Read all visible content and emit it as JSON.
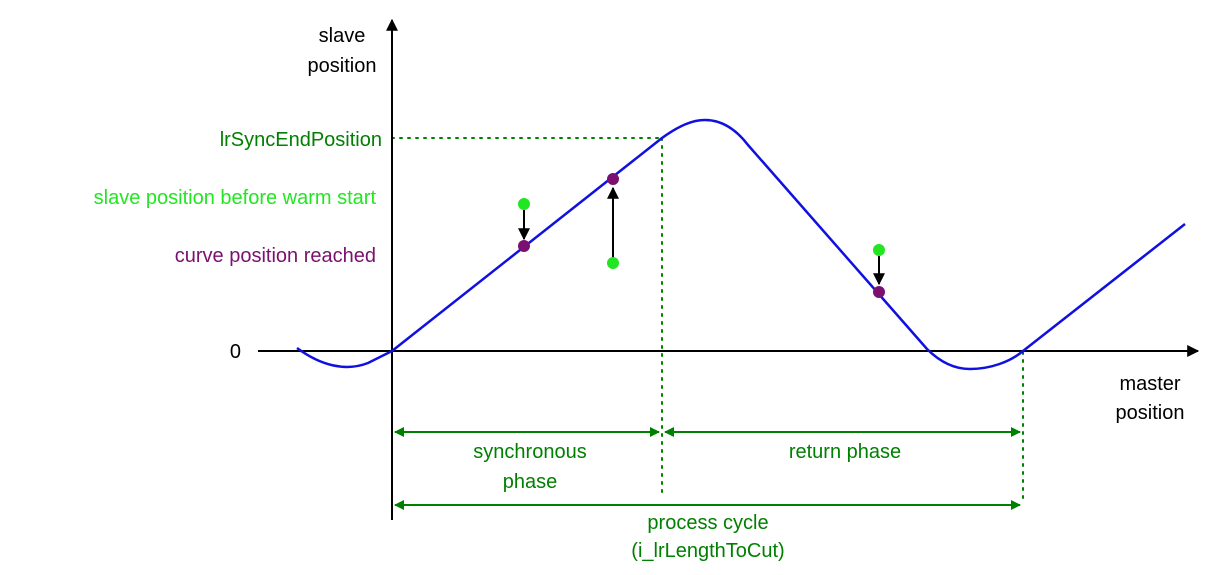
{
  "axes": {
    "y_label_line1": "slave",
    "y_label_line2": "position",
    "x_label_line1": "master",
    "x_label_line2": "position",
    "origin_label": "0",
    "sync_end_label": "lrSyncEndPosition"
  },
  "legend": {
    "before_warm_start": "slave position before warm start",
    "curve_reached": "curve position reached"
  },
  "phases": {
    "synchronous_line1": "synchronous",
    "synchronous_line2": "phase",
    "return": "return phase",
    "process_line1": "process cycle",
    "process_line2": "(i_lrLengthToCut)"
  },
  "colors": {
    "curve": "#1010e0",
    "label_green": "#008000",
    "start_point": "#22e622",
    "reached_point": "#7a1070",
    "axis": "#000000"
  }
}
